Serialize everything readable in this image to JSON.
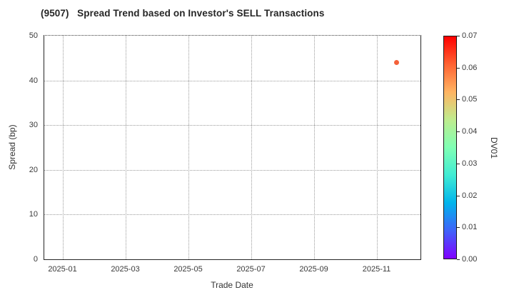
{
  "chart_data": {
    "type": "scatter",
    "title": "(9507)   Spread Trend based on Investor's SELL Transactions",
    "xlabel": "Trade Date",
    "ylabel": "Spread (bp)",
    "x_tick_labels": [
      "2025-01",
      "2025-03",
      "2025-05",
      "2025-07",
      "2025-09",
      "2025-11"
    ],
    "x_tick_months": [
      0,
      2,
      4,
      6,
      8,
      10
    ],
    "y_ticks": [
      0,
      10,
      20,
      30,
      40,
      50
    ],
    "ylim": [
      0,
      50
    ],
    "grid": true,
    "grid_linestyle": "dotted",
    "legend_position": "none",
    "points": [
      {
        "date": "2025-11-20",
        "spread_bp": 44.0,
        "dv01": 0.061,
        "color": "#f4613a",
        "marker_px": 7
      }
    ],
    "colorbar": {
      "label": "DV01",
      "min": 0.0,
      "max": 0.07,
      "tick_labels": [
        "0.00",
        "0.01",
        "0.02",
        "0.03",
        "0.04",
        "0.05",
        "0.06",
        "0.07"
      ],
      "colormap": "rainbow",
      "gradient_stops_bottom_to_top": [
        "#8000ff",
        "#4062fa",
        "#00b4ec",
        "#40ecd4",
        "#80ffb4",
        "#bfec8e",
        "#ffb462",
        "#ff6232",
        "#ff0000"
      ]
    },
    "colors": {
      "title_text": "#262626",
      "tick_text": "#3a3a3a",
      "axis_spine": "#262626",
      "gridline": "#9b9b9b",
      "background": "#ffffff"
    }
  }
}
